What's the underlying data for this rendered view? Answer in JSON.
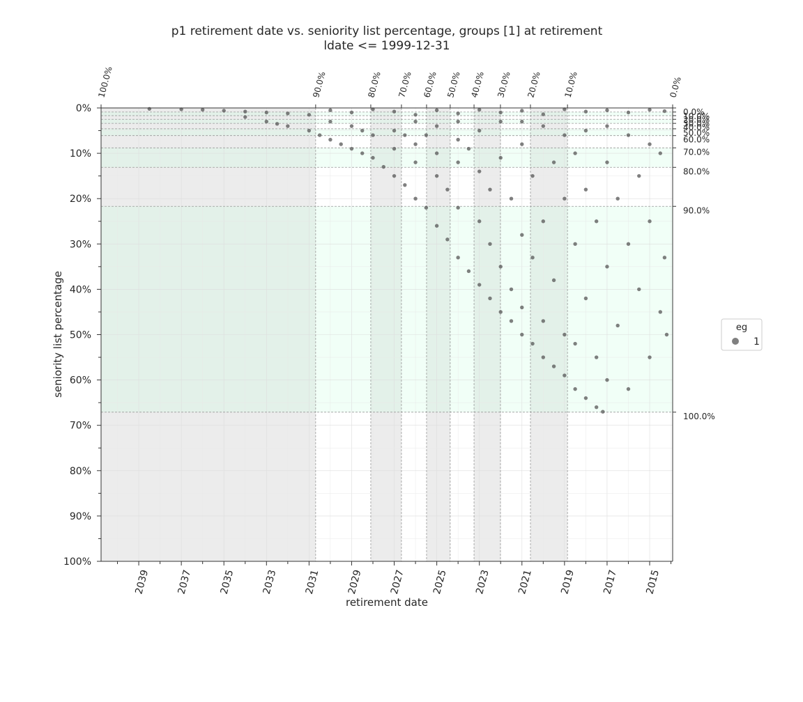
{
  "chart_data": {
    "type": "scatter",
    "title": "p1 retirement date vs. seniority list percentage, groups [1] at retirement",
    "subtitle": "ldate <= 1999-12-31",
    "xlabel": "retirement date",
    "ylabel": "seniority list percentage",
    "xlim": [
      2040.77,
      2013.92
    ],
    "ylim": [
      0,
      100
    ],
    "xticks": [
      2039,
      2037,
      2035,
      2033,
      2031,
      2029,
      2027,
      2025,
      2023,
      2021,
      2019,
      2017,
      2015
    ],
    "xminorticks": [
      2040,
      2038,
      2036,
      2034,
      2032,
      2030,
      2028,
      2026,
      2024,
      2022,
      2020,
      2018,
      2016,
      2014
    ],
    "yticks": [
      {
        "value": 0,
        "label": "0%"
      },
      {
        "value": 10,
        "label": "10%"
      },
      {
        "value": 20,
        "label": "20%"
      },
      {
        "value": 30,
        "label": "30%"
      },
      {
        "value": 40,
        "label": "40%"
      },
      {
        "value": 50,
        "label": "50%"
      },
      {
        "value": 60,
        "label": "60%"
      },
      {
        "value": 70,
        "label": "70%"
      },
      {
        "value": 80,
        "label": "80%"
      },
      {
        "value": 90,
        "label": "90%"
      },
      {
        "value": 100,
        "label": "100%"
      }
    ],
    "yminorticks": [
      5,
      15,
      25,
      35,
      45,
      55,
      65,
      75,
      85,
      95
    ],
    "grid": true,
    "top_markers": [
      {
        "value": 2040.77,
        "label": "100.0%"
      },
      {
        "value": 2030.69,
        "label": "90.0%"
      },
      {
        "value": 2028.1,
        "label": "80.0%"
      },
      {
        "value": 2026.66,
        "label": "70.0%"
      },
      {
        "value": 2025.48,
        "label": "60.0%"
      },
      {
        "value": 2024.37,
        "label": "50.0%"
      },
      {
        "value": 2023.25,
        "label": "40.0%"
      },
      {
        "value": 2022.01,
        "label": "30.0%"
      },
      {
        "value": 2020.6,
        "label": "20.0%"
      },
      {
        "value": 2018.86,
        "label": "10.0%"
      },
      {
        "value": 2013.92,
        "label": "0.0%"
      }
    ],
    "right_markers": [
      {
        "value": 0,
        "label": "0.0%"
      },
      {
        "value": 0.9,
        "label": "10.0%"
      },
      {
        "value": 1.7,
        "label": "20.0%"
      },
      {
        "value": 2.5,
        "label": "30.0%"
      },
      {
        "value": 3.4,
        "label": "40.0%"
      },
      {
        "value": 4.6,
        "label": "50.0%"
      },
      {
        "value": 6.1,
        "label": "60.0%"
      },
      {
        "value": 8.8,
        "label": "70.0%"
      },
      {
        "value": 13.1,
        "label": "80.0%"
      },
      {
        "value": 21.7,
        "label": "90.0%"
      },
      {
        "value": 67.1,
        "label": "100.0%"
      }
    ],
    "legend_title": "eg",
    "legend": "right",
    "series": [
      {
        "name": "1",
        "color": "#555555",
        "x": [
          2038.5,
          2037,
          2036,
          2035,
          2034,
          2033,
          2032,
          2031,
          2030,
          2029,
          2028,
          2027,
          2026,
          2025,
          2024,
          2023,
          2022,
          2021,
          2020,
          2019,
          2018,
          2017,
          2016,
          2015,
          2014.3,
          2034,
          2033,
          2032.5,
          2032,
          2031,
          2030.5,
          2030,
          2029.5,
          2029,
          2028.5,
          2028,
          2027.5,
          2027,
          2026.5,
          2026,
          2025.5,
          2025,
          2024.5,
          2024,
          2023.5,
          2023,
          2022.5,
          2022,
          2021.5,
          2021,
          2020.5,
          2020,
          2019.5,
          2019,
          2018.5,
          2018,
          2017.5,
          2017.2,
          2029,
          2028,
          2027,
          2027,
          2026,
          2026,
          2025.5,
          2025,
          2025,
          2024.5,
          2024,
          2024,
          2024,
          2023.5,
          2023,
          2023,
          2022.5,
          2022.5,
          2022,
          2022,
          2021.5,
          2021.5,
          2021,
          2021,
          2021,
          2020.5,
          2020.5,
          2020,
          2020,
          2019.5,
          2019.5,
          2019,
          2019,
          2018.5,
          2018.5,
          2018.5,
          2018,
          2018,
          2017.5,
          2017.5,
          2017,
          2017,
          2017,
          2016.5,
          2016.5,
          2016,
          2016,
          2015.5,
          2015.5,
          2015,
          2015,
          2014.5,
          2014.5,
          2014.3,
          2014.2,
          2016,
          2018,
          2020,
          2022,
          2024,
          2026,
          2015,
          2017,
          2019,
          2021,
          2023,
          2025,
          2026.5,
          2028.5,
          2030
        ],
        "values": [
          0.2,
          0.3,
          0.4,
          0.6,
          0.8,
          1.0,
          1.2,
          1.5,
          0.5,
          1,
          0.3,
          0.8,
          1.5,
          0.5,
          1.2,
          0.4,
          1,
          0.6,
          1.4,
          0.3,
          0.8,
          0.5,
          1,
          0.4,
          0.7,
          2,
          3,
          3.5,
          4,
          5,
          6,
          7,
          8,
          9,
          10,
          11,
          13,
          15,
          17,
          20,
          22,
          26,
          29,
          33,
          36,
          39,
          42,
          45,
          47,
          50,
          52,
          55,
          57,
          59,
          62,
          64,
          66,
          67,
          4,
          6,
          5,
          9,
          8,
          12,
          6,
          10,
          15,
          18,
          7,
          12,
          22,
          9,
          14,
          25,
          18,
          30,
          11,
          35,
          20,
          40,
          8,
          28,
          44,
          15,
          33,
          25,
          47,
          12,
          38,
          20,
          50,
          10,
          30,
          52,
          18,
          42,
          25,
          55,
          12,
          35,
          60,
          20,
          48,
          30,
          62,
          15,
          40,
          25,
          55,
          10,
          45,
          33,
          50,
          6,
          5,
          4,
          3,
          3,
          3,
          8,
          4,
          6,
          3,
          5,
          4,
          6,
          5,
          3
        ]
      }
    ]
  }
}
